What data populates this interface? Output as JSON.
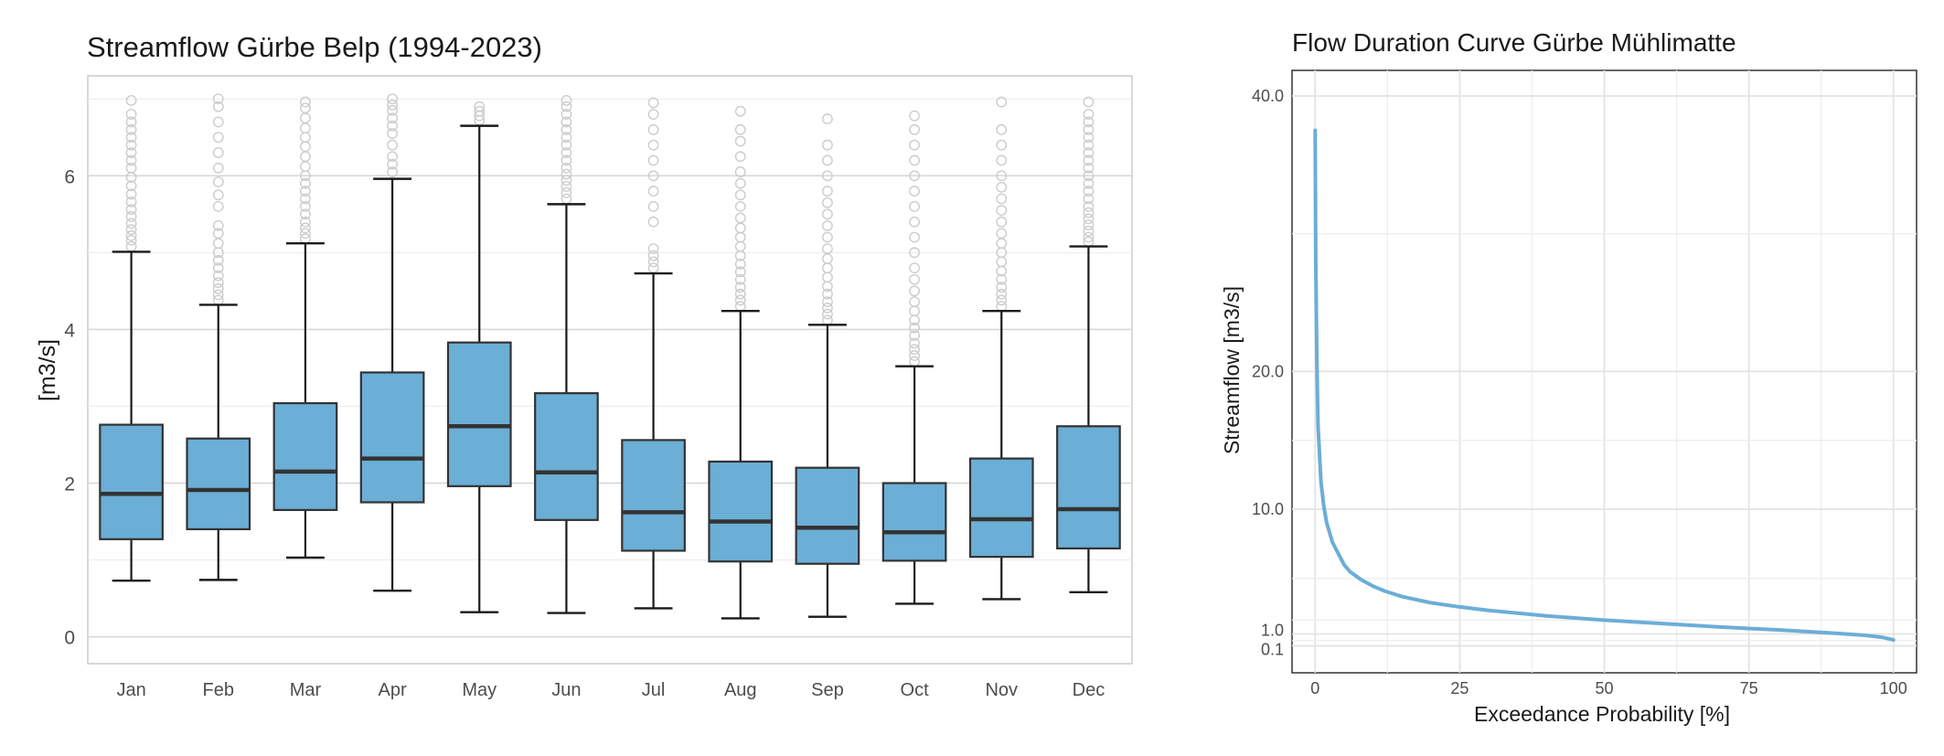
{
  "chart_data": [
    {
      "type": "box",
      "title": "Streamflow Gürbe Belp (1994-2023)",
      "xlabel": "",
      "ylabel": "[m3/s]",
      "categories": [
        "Jan",
        "Feb",
        "Mar",
        "Apr",
        "May",
        "Jun",
        "Jul",
        "Aug",
        "Sep",
        "Oct",
        "Nov",
        "Dec"
      ],
      "ylim": [
        -0.35,
        7.3
      ],
      "yticks": [
        0,
        2,
        4,
        6
      ],
      "ytick_labels": [
        "0",
        "2",
        "4",
        "6"
      ],
      "grid": true,
      "box_color": "#6BAED6",
      "outlier_color": "#cccccc",
      "boxes": [
        {
          "whisker_low": 0.73,
          "q1": 1.27,
          "median": 1.86,
          "q3": 2.76,
          "whisker_high": 5.01,
          "outliers": [
            5.08,
            5.16,
            5.22,
            5.3,
            5.38,
            5.47,
            5.56,
            5.66,
            5.76,
            5.87,
            5.98,
            6.1,
            6.2,
            6.3,
            6.4,
            6.5,
            6.6,
            6.7,
            6.8,
            6.98
          ]
        },
        {
          "whisker_low": 0.74,
          "q1": 1.4,
          "median": 1.91,
          "q3": 2.58,
          "whisker_high": 4.32,
          "outliers": [
            4.38,
            4.45,
            4.53,
            4.61,
            4.7,
            4.8,
            4.9,
            5.0,
            5.12,
            5.25,
            5.35,
            5.6,
            5.75,
            5.92,
            6.1,
            6.3,
            6.5,
            6.7,
            6.9,
            7.0
          ]
        },
        {
          "whisker_low": 1.03,
          "q1": 1.65,
          "median": 2.15,
          "q3": 3.04,
          "whisker_high": 5.12,
          "outliers": [
            5.18,
            5.25,
            5.32,
            5.4,
            5.5,
            5.6,
            5.7,
            5.8,
            5.9,
            6.0,
            6.12,
            6.25,
            6.38,
            6.5,
            6.62,
            6.75,
            6.88,
            6.96
          ]
        },
        {
          "whisker_low": 0.6,
          "q1": 1.75,
          "median": 2.32,
          "q3": 3.44,
          "whisker_high": 5.96,
          "outliers": [
            6.05,
            6.15,
            6.25,
            6.4,
            6.55,
            6.65,
            6.75,
            6.85,
            6.92,
            7.0
          ]
        },
        {
          "whisker_low": 0.32,
          "q1": 1.96,
          "median": 2.74,
          "q3": 3.83,
          "whisker_high": 6.65,
          "outliers": [
            6.72,
            6.78,
            6.84,
            6.9
          ]
        },
        {
          "whisker_low": 0.31,
          "q1": 1.52,
          "median": 2.14,
          "q3": 3.17,
          "whisker_high": 5.63,
          "outliers": [
            5.7,
            5.78,
            5.86,
            5.94,
            6.02,
            6.1,
            6.2,
            6.3,
            6.4,
            6.5,
            6.6,
            6.7,
            6.8,
            6.9,
            6.98
          ]
        },
        {
          "whisker_low": 0.37,
          "q1": 1.12,
          "median": 1.62,
          "q3": 2.56,
          "whisker_high": 4.73,
          "outliers": [
            4.8,
            4.88,
            4.96,
            5.05,
            5.4,
            5.6,
            5.8,
            6.0,
            6.2,
            6.4,
            6.6,
            6.8,
            6.95
          ]
        },
        {
          "whisker_low": 0.24,
          "q1": 0.98,
          "median": 1.5,
          "q3": 2.28,
          "whisker_high": 4.24,
          "outliers": [
            4.3,
            4.38,
            4.46,
            4.55,
            4.65,
            4.75,
            4.85,
            4.96,
            5.08,
            5.2,
            5.32,
            5.45,
            5.6,
            5.75,
            5.9,
            6.05,
            6.25,
            6.45,
            6.6,
            6.84
          ]
        },
        {
          "whisker_low": 0.26,
          "q1": 0.95,
          "median": 1.42,
          "q3": 2.2,
          "whisker_high": 4.06,
          "outliers": [
            4.12,
            4.2,
            4.28,
            4.36,
            4.46,
            4.56,
            4.68,
            4.8,
            4.92,
            5.05,
            5.2,
            5.35,
            5.5,
            5.65,
            5.8,
            6.0,
            6.2,
            6.4,
            6.74
          ]
        },
        {
          "whisker_low": 0.43,
          "q1": 0.99,
          "median": 1.36,
          "q3": 2.0,
          "whisker_high": 3.52,
          "outliers": [
            3.58,
            3.66,
            3.74,
            3.82,
            3.92,
            4.02,
            4.12,
            4.24,
            4.36,
            4.5,
            4.65,
            4.8,
            5.0,
            5.2,
            5.4,
            5.6,
            5.8,
            6.0,
            6.2,
            6.4,
            6.6,
            6.78
          ]
        },
        {
          "whisker_low": 0.49,
          "q1": 1.04,
          "median": 1.53,
          "q3": 2.32,
          "whisker_high": 4.24,
          "outliers": [
            4.3,
            4.38,
            4.46,
            4.55,
            4.65,
            4.76,
            4.88,
            5.0,
            5.12,
            5.25,
            5.4,
            5.55,
            5.7,
            5.85,
            6.0,
            6.2,
            6.4,
            6.6,
            6.96
          ]
        },
        {
          "whisker_low": 0.58,
          "q1": 1.15,
          "median": 1.66,
          "q3": 2.74,
          "whisker_high": 5.08,
          "outliers": [
            5.14,
            5.2,
            5.28,
            5.36,
            5.44,
            5.52,
            5.6,
            5.7,
            5.8,
            5.9,
            6.0,
            6.1,
            6.2,
            6.3,
            6.4,
            6.5,
            6.6,
            6.7,
            6.8,
            6.96
          ]
        }
      ]
    },
    {
      "type": "line",
      "title": "Flow Duration Curve Gürbe Mühlimatte",
      "xlabel": "Exceedance Probability [%]",
      "ylabel": "Streamflow [m3/s]",
      "xlim": [
        -4,
        104
      ],
      "ylim_display": [
        0,
        43
      ],
      "xticks": [
        0,
        25,
        50,
        75,
        100
      ],
      "xtick_labels": [
        "0",
        "25",
        "50",
        "75",
        "100"
      ],
      "yticks": [
        0.1,
        1.0,
        10.0,
        20.0,
        40.0
      ],
      "ytick_labels": [
        "0.1",
        "1.0",
        "10.0",
        "20.0",
        "40.0"
      ],
      "grid": true,
      "line_color": "#6BAED6",
      "x": [
        0,
        0.1,
        0.3,
        0.5,
        1,
        1.5,
        2,
        3,
        4,
        5,
        6,
        8,
        10,
        12,
        15,
        20,
        25,
        30,
        40,
        50,
        60,
        70,
        80,
        90,
        95,
        98,
        100
      ],
      "y": [
        37.5,
        28.0,
        20.5,
        16.0,
        12.0,
        10.2,
        9.0,
        7.6,
        6.8,
        6.0,
        5.5,
        4.9,
        4.45,
        4.1,
        3.7,
        3.25,
        2.95,
        2.7,
        2.3,
        2.0,
        1.75,
        1.5,
        1.3,
        1.05,
        0.9,
        0.75,
        0.55
      ]
    }
  ]
}
